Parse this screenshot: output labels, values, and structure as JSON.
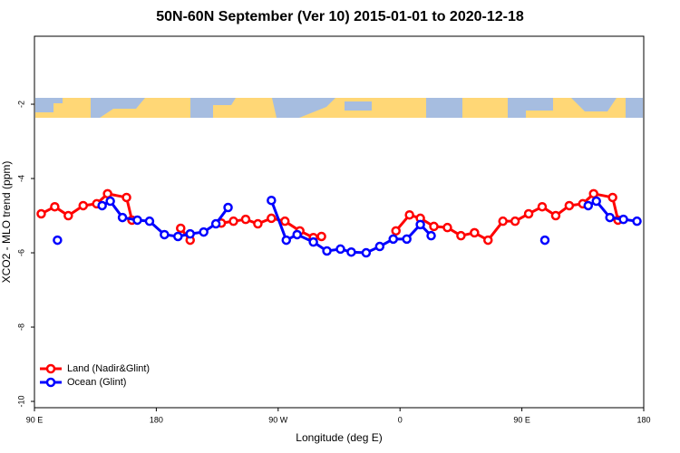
{
  "chart_data": {
    "type": "line",
    "title": "50N-60N September (Ver 10)   2015-01-01 to 2020-12-18",
    "xlabel": "Longitude (deg E)",
    "ylabel": "XCO2 - MLO trend (ppm)",
    "xlim": [
      90,
      540
    ],
    "xticks": [
      {
        "value": 90,
        "label": "90 E"
      },
      {
        "value": 180,
        "label": "180"
      },
      {
        "value": 270,
        "label": "90 W"
      },
      {
        "value": 360,
        "label": "0"
      },
      {
        "value": 450,
        "label": "90 E"
      },
      {
        "value": 540,
        "label": "180"
      }
    ],
    "ylim": [
      -10.17,
      -0.17
    ],
    "yticks": [
      -2,
      -4,
      -6,
      -8,
      -10
    ],
    "legend": "lower left",
    "series": [
      {
        "name": "Land (Nadir&Glint)",
        "color": "#ff0000",
        "x": [
          95,
          105,
          115,
          126,
          136,
          144,
          158,
          162,
          null,
          198,
          205,
          null,
          228,
          237,
          246,
          255,
          265,
          275,
          286,
          296,
          302,
          null,
          357,
          367,
          375,
          385,
          395,
          405,
          415,
          425,
          436,
          445,
          455,
          465,
          475,
          485,
          495,
          503,
          517,
          521
        ],
        "values": [
          -4.95,
          -4.76,
          -5.0,
          -4.73,
          -4.68,
          -4.41,
          -4.51,
          -5.12,
          null,
          -5.34,
          -5.66,
          null,
          -5.2,
          -5.15,
          -5.1,
          -5.22,
          -5.07,
          -5.15,
          -5.41,
          -5.59,
          -5.56,
          null,
          -5.41,
          -4.98,
          -5.07,
          -5.29,
          -5.32,
          -5.54,
          -5.46,
          -5.66,
          -5.15,
          -5.15,
          -4.95,
          -4.76,
          -5.0,
          -4.73,
          -4.68,
          -4.41,
          -4.51,
          -5.12
        ]
      },
      {
        "name": "Ocean (Glint)",
        "color": "#0000ff",
        "x": [
          107,
          null,
          140,
          146,
          155,
          166,
          175,
          186,
          196,
          205,
          215,
          224,
          233,
          null,
          265,
          276,
          284,
          296,
          306,
          316,
          324,
          335,
          345,
          355,
          365,
          375,
          383,
          null,
          467,
          null,
          499,
          505,
          515,
          525,
          535
        ],
        "values": [
          -5.66,
          null,
          -4.73,
          -4.61,
          -5.05,
          -5.12,
          -5.15,
          -5.51,
          -5.56,
          -5.49,
          -5.44,
          -5.22,
          -4.78,
          null,
          -4.59,
          -5.66,
          -5.51,
          -5.71,
          -5.95,
          -5.9,
          -5.98,
          -6.0,
          -5.83,
          -5.63,
          -5.63,
          -5.24,
          -5.54,
          null,
          -5.66,
          null,
          -4.73,
          -4.61,
          -5.05,
          -5.1,
          -5.15
        ]
      }
    ]
  }
}
